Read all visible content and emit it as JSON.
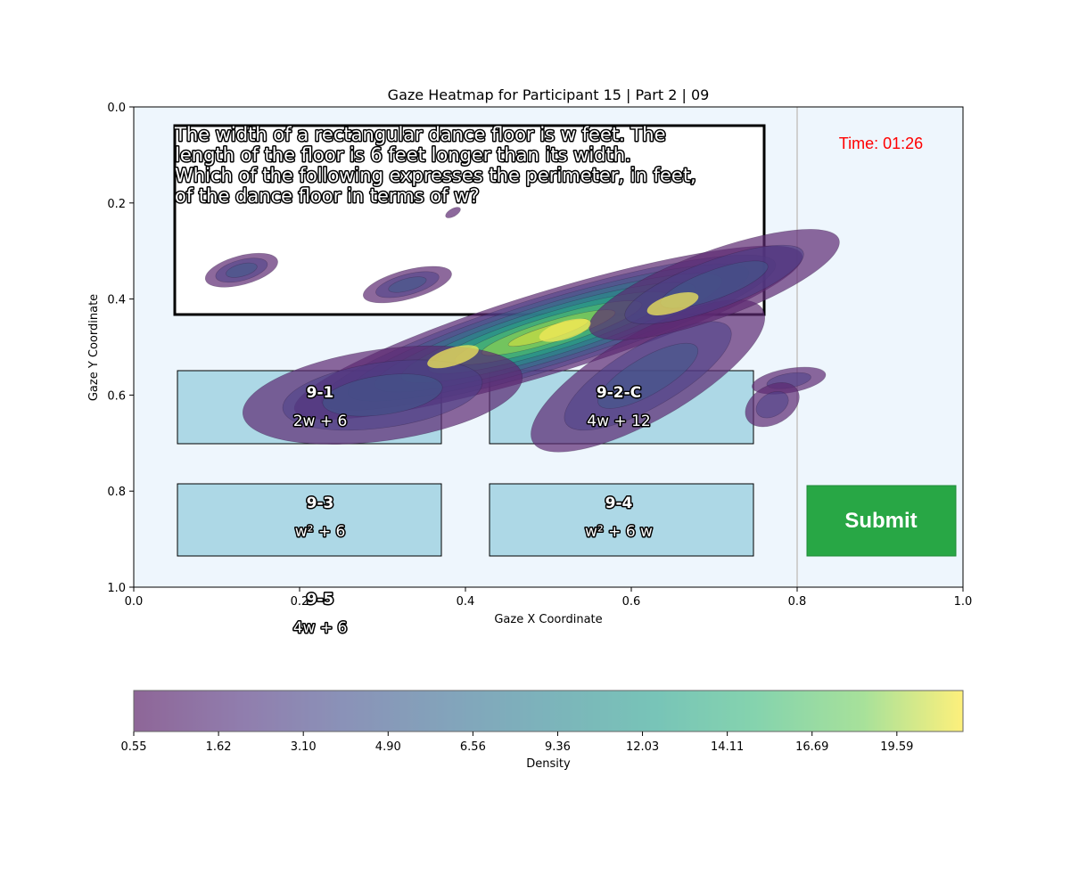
{
  "chart_data": {
    "type": "heatmap",
    "title": "Gaze Heatmap for Participant 15 | Part 2 | 09",
    "xlabel": "Gaze X Coordinate",
    "ylabel": "Gaze Y Coordinate",
    "xlim": [
      0.0,
      1.0
    ],
    "ylim": [
      1.0,
      0.0
    ],
    "x_ticks": [
      "0.0",
      "0.2",
      "0.4",
      "0.6",
      "0.8",
      "1.0"
    ],
    "y_ticks": [
      "0.0",
      "0.2",
      "0.4",
      "0.6",
      "0.8",
      "1.0"
    ],
    "grid": false,
    "colorbar": {
      "label": "Density",
      "ticks": [
        "0.55",
        "1.62",
        "3.10",
        "4.90",
        "6.56",
        "9.36",
        "12.03",
        "14.11",
        "16.69",
        "19.59"
      ],
      "colormap": "viridis",
      "alpha": 0.6
    },
    "density_peaks": [
      {
        "x": 0.385,
        "y": 0.52
      },
      {
        "x": 0.52,
        "y": 0.465
      },
      {
        "x": 0.65,
        "y": 0.41
      }
    ]
  },
  "question": {
    "lines": [
      "The width of a rectangular dance floor is w feet. The",
      "length of the floor is 6 feet longer than its width.",
      "Which of the following expresses the perimeter, in feet,",
      "of the dance floor in terms of w?"
    ]
  },
  "timer": {
    "text": "Time: 01:26",
    "color": "#ff0000"
  },
  "options": [
    {
      "id": "9-1",
      "answer": "2w + 6"
    },
    {
      "id": "9-2-C",
      "answer": "4w + 12"
    },
    {
      "id": "9-3",
      "answer": "w² + 6"
    },
    {
      "id": "9-4",
      "answer": "w² + 6 w"
    },
    {
      "id": "9-5",
      "answer": "4w + 6"
    }
  ],
  "submit": {
    "label": "Submit",
    "color": "#28a745"
  },
  "colors": {
    "plot_background": "#eef6fd",
    "option_box": "#add8e6",
    "divider": "#d0d0d0"
  }
}
